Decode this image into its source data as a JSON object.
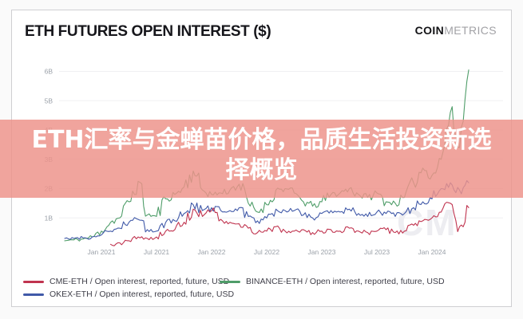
{
  "header": {
    "title": "ETH FUTURES OPEN INTEREST ($)",
    "logo_bold": "COIN",
    "logo_light": "METRICS"
  },
  "banner": {
    "text": "ETH汇率与金蝉苗价格，品质生活投资新选择概览",
    "background": "rgba(237,147,138,0.84)",
    "text_color": "#ffffff"
  },
  "watermark": "CM",
  "chart_data": {
    "type": "line",
    "title": "ETH FUTURES OPEN INTEREST ($)",
    "y_unit": "billions USD",
    "ylim": [
      0,
      6.5
    ],
    "grid": "horizontal",
    "legend_position": "bottom",
    "x_start_month": "2020-09",
    "x_end_month": "2024-05",
    "x_tick_labels": [
      "Jan 2021",
      "Jul 2021",
      "Jan 2022",
      "Jul 2022",
      "Jan 2023",
      "Jul 2023",
      "Jan 2024"
    ],
    "x_tick_month_index": [
      4,
      10,
      16,
      22,
      28,
      34,
      40
    ],
    "y_ticks": [
      "1B",
      "2B",
      "3B",
      "4B",
      "5B",
      "6B"
    ],
    "series": [
      {
        "name": "BINANCE-ETH",
        "legend": "BINANCE-ETH / Open interest, reported, future, USD",
        "color": "#4f9d69",
        "values": [
          0.22,
          0.25,
          0.28,
          0.35,
          0.55,
          0.85,
          1.0,
          1.55,
          2.25,
          1.1,
          1.05,
          1.65,
          1.8,
          2.05,
          2.6,
          1.95,
          1.8,
          1.85,
          1.95,
          2.15,
          1.5,
          1.2,
          1.45,
          1.95,
          2.0,
          1.85,
          1.55,
          1.4,
          1.55,
          1.8,
          1.85,
          2.0,
          1.8,
          1.7,
          1.85,
          1.55,
          1.5,
          1.7,
          2.2,
          2.7,
          2.45,
          3.0,
          4.6,
          3.4,
          6.05
        ]
      },
      {
        "name": "OKEX-ETH",
        "legend": "OKEX-ETH / Open interest, reported, future, USD",
        "color": "#4059a8",
        "values": [
          0.3,
          0.3,
          0.32,
          0.35,
          0.42,
          0.55,
          0.65,
          0.85,
          0.95,
          0.6,
          0.55,
          0.85,
          0.9,
          1.15,
          1.45,
          1.25,
          1.35,
          1.25,
          1.25,
          1.35,
          1.05,
          0.9,
          1.0,
          1.3,
          1.25,
          1.25,
          1.1,
          1.0,
          1.15,
          1.25,
          1.2,
          1.3,
          1.15,
          1.05,
          1.2,
          1.15,
          1.05,
          1.15,
          1.35,
          1.55,
          1.65,
          2.0,
          2.2,
          1.95,
          2.2
        ]
      },
      {
        "name": "CME-ETH",
        "legend": "CME-ETH / Open interest, reported, future, USD",
        "color": "#c0344f",
        "values": [
          null,
          null,
          null,
          null,
          null,
          0.1,
          0.15,
          0.22,
          0.35,
          0.3,
          0.35,
          0.55,
          0.6,
          0.85,
          1.3,
          1.05,
          1.25,
          0.95,
          0.85,
          0.8,
          0.65,
          0.5,
          0.55,
          0.7,
          0.55,
          0.55,
          0.6,
          0.5,
          0.55,
          0.6,
          0.55,
          0.65,
          0.55,
          0.5,
          0.55,
          0.6,
          0.5,
          0.55,
          0.75,
          0.9,
          1.0,
          1.2,
          1.5,
          0.7,
          1.35
        ]
      }
    ],
    "legend_order": [
      "CME-ETH",
      "BINANCE-ETH",
      "OKEX-ETH"
    ]
  }
}
